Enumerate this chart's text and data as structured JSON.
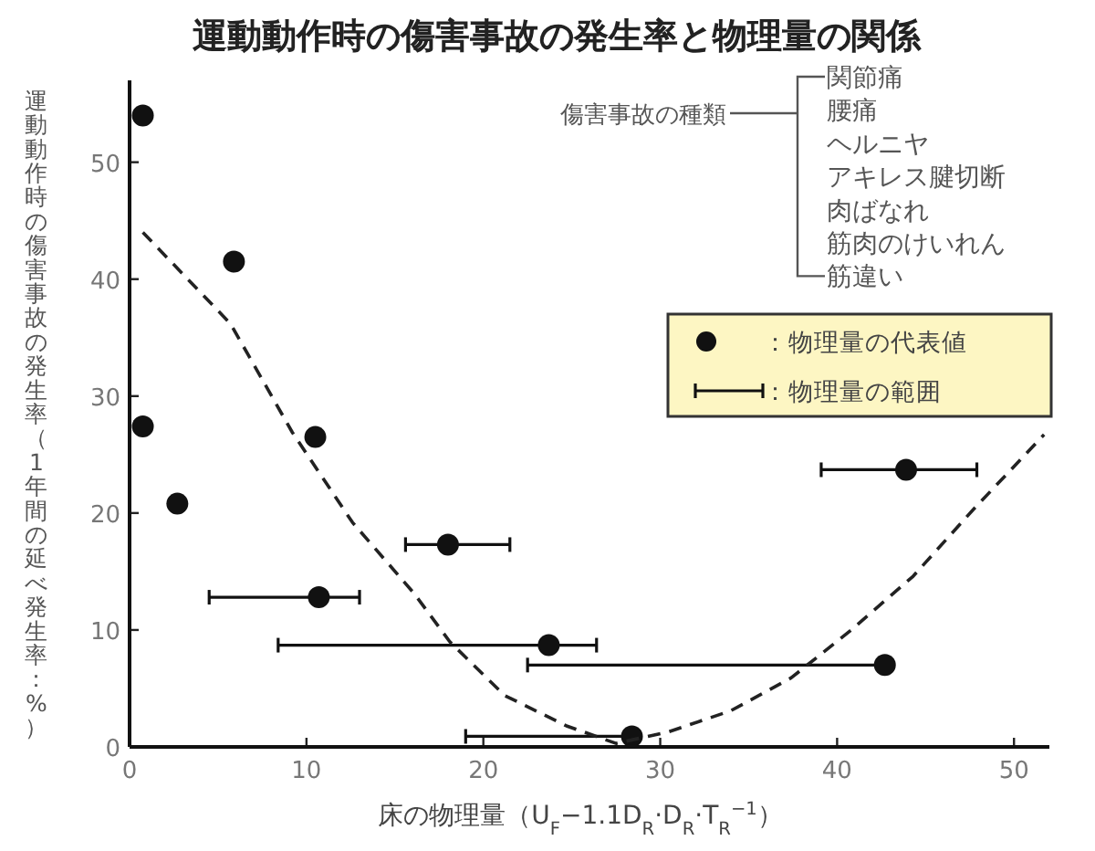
{
  "chart_data": {
    "type": "scatter",
    "title": "運動動作時の傷害事故の発生率と物理量の関係",
    "xlabel": "床の物理量（U$_{F}$−1.1D$_{R}$·D$_{R}$·T$_{R}$$^{−1}$）",
    "ylabel": "運動動作時の傷害事故の発生率（1年間の延べ発生率：%）",
    "xlim": [
      0,
      52
    ],
    "ylim": [
      0,
      57
    ],
    "xticks": [
      0,
      10,
      20,
      30,
      40,
      50
    ],
    "yticks": [
      0,
      10,
      20,
      30,
      40,
      50
    ],
    "grid": false,
    "legend": "right",
    "marker": "circle",
    "series": [
      {
        "type": "scatter",
        "name": "：物理量の代表値",
        "color": "#111111",
        "x": [
          0.75,
          5.9,
          0.75,
          10.5,
          2.7,
          18.0,
          10.7,
          23.7,
          43.9,
          42.7,
          28.4
        ],
        "values": [
          54,
          41.5,
          27.4,
          26.5,
          20.8,
          17.3,
          12.8,
          8.7,
          23.7,
          7.0,
          0.9
        ],
        "xerrors": [
          null,
          null,
          null,
          null,
          null,
          [
            15.6,
            21.5
          ],
          [
            4.5,
            13.0
          ],
          [
            8.4,
            26.4
          ],
          [
            39.1,
            47.9
          ],
          [
            22.5,
            42.7
          ],
          [
            19.0,
            28.4
          ]
        ]
      },
      {
        "type": "line",
        "color": "#222222",
        "line_style": "dashed",
        "marker": "none",
        "x": [
          0.75,
          5.7,
          9.2,
          12.6,
          16.1,
          18.1,
          21.2,
          24.7,
          27.5,
          30.5,
          34.0,
          37.4,
          40.8,
          44.3,
          47.7,
          51.7
        ],
        "values": [
          44,
          36.2,
          26.9,
          19.2,
          13.1,
          9.0,
          4.4,
          1.8,
          0.3,
          1.3,
          3.1,
          5.9,
          10,
          14.6,
          20.3,
          26.7
        ]
      }
    ],
    "annotations": [
      "傷害事故の種類",
      "関節痛",
      "腰痛",
      "ヘルニヤ",
      "アキレス腱切断",
      "肉ばなれ",
      "筋肉のけいれん",
      "筋違い",
      "：物理量の範囲"
    ]
  }
}
